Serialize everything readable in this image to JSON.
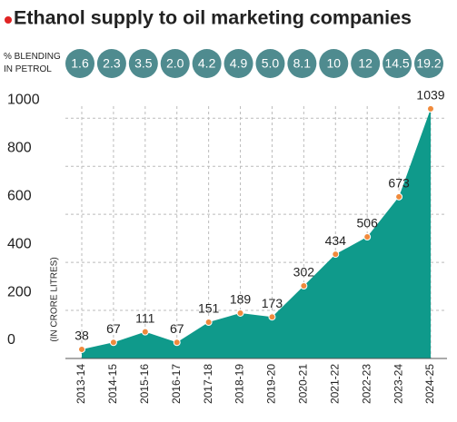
{
  "chart_data": {
    "type": "area",
    "title": "Ethanol supply to oil marketing companies",
    "y_label": "(IN CRORE LITRES)",
    "categories": [
      "2013-14",
      "2014-15",
      "2015-16",
      "2016-17",
      "2017-18",
      "2018-19",
      "2019-20",
      "2020-21",
      "2021-22",
      "2022-23",
      "2023-24",
      "2024-25"
    ],
    "values": [
      38,
      67,
      111,
      67,
      151,
      189,
      173,
      302,
      434,
      506,
      673,
      1039
    ],
    "color": "#0f9a8b",
    "point_color": "#f08a3c",
    "ylim": [
      0,
      1050
    ],
    "yticks": [
      0,
      200,
      400,
      600,
      800,
      1000
    ],
    "grid": true,
    "blending": {
      "label": "% BLENDING IN PETROL",
      "color": "#4f8b8f",
      "values": [
        1.6,
        2.3,
        3.5,
        2.0,
        4.2,
        4.9,
        5.0,
        8.1,
        10,
        12,
        14.5,
        19.2
      ],
      "value_labels": [
        "1.6",
        "2.3",
        "3.5",
        "2.0",
        "4.2",
        "4.9",
        "5.0",
        "8.1",
        "10",
        "12",
        "14.5",
        "19.2"
      ]
    }
  }
}
